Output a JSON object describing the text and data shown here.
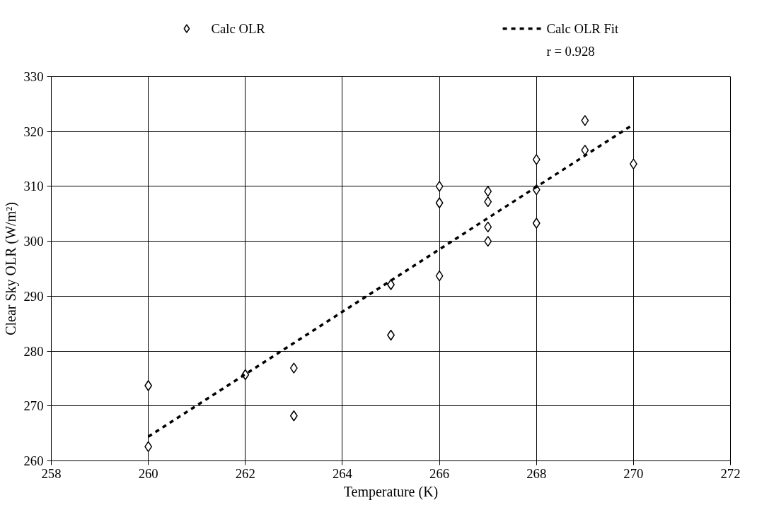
{
  "chart_data": {
    "type": "scatter",
    "xlabel": "Temperature (K)",
    "ylabel": "Clear Sky OLR (W/m²)",
    "xlim": [
      258,
      272
    ],
    "xticks": [
      258,
      260,
      262,
      264,
      266,
      268,
      270,
      272
    ],
    "ylim": [
      260,
      330
    ],
    "yticks": [
      260,
      270,
      280,
      290,
      300,
      310,
      320,
      330
    ],
    "grid": true,
    "legend": "top",
    "annotations": [
      "r = 0.928"
    ],
    "series": [
      {
        "name": "Calc OLR",
        "type": "scatter",
        "marker": "diamond",
        "color": "#000000",
        "x": [
          260,
          260,
          262,
          263,
          263,
          265,
          265,
          266,
          266,
          266,
          267,
          267,
          267,
          267,
          268,
          268,
          268,
          269,
          269,
          270
        ],
        "values": [
          273.7,
          262.6,
          275.7,
          276.9,
          268.2,
          292.1,
          282.9,
          310,
          307,
          293.7,
          309.1,
          307.2,
          302.6,
          300,
          314.9,
          309.4,
          303.3,
          322,
          316.6,
          314.1
        ]
      },
      {
        "name": "Calc OLR Fit",
        "type": "line",
        "line_style": "dashed",
        "color": "#000000",
        "x": [
          260,
          270
        ],
        "values": [
          264.4,
          321.3
        ]
      }
    ]
  }
}
